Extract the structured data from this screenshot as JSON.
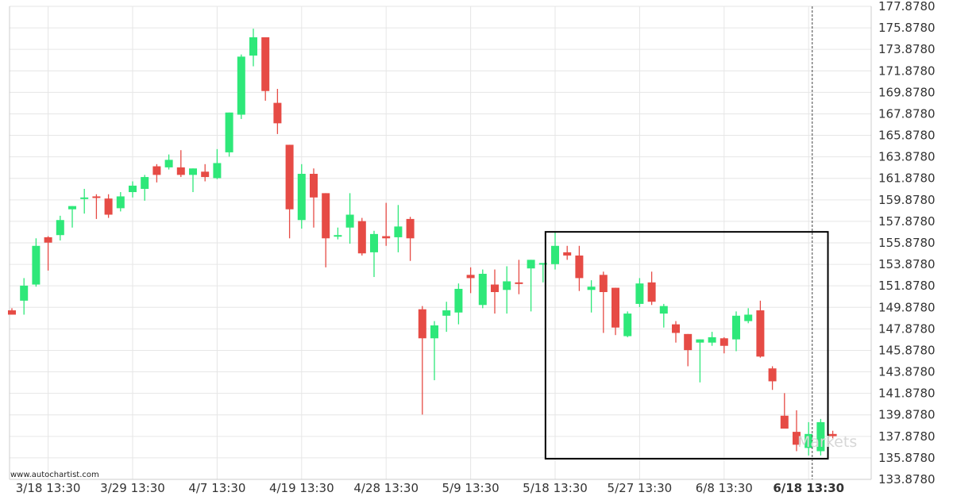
{
  "source_text": "www.autochartist.com",
  "watermark_text": "Markets",
  "chart_data": {
    "type": "candlestick",
    "ylim": [
      133.878,
      177.878
    ],
    "y_ticks": [
      "177.8780",
      "175.8780",
      "173.8780",
      "171.8780",
      "169.8780",
      "167.8780",
      "165.8780",
      "163.8780",
      "161.8780",
      "159.8780",
      "157.8780",
      "155.8780",
      "153.8780",
      "151.8780",
      "149.8780",
      "147.8780",
      "145.8780",
      "143.8780",
      "141.8780",
      "139.8780",
      "137.8780",
      "135.8780",
      "133.8780"
    ],
    "x_ticks": [
      {
        "label": "3/18 13:30",
        "index": 3,
        "highlight": false
      },
      {
        "label": "3/29 13:30",
        "index": 10,
        "highlight": false
      },
      {
        "label": "4/7 13:30",
        "index": 17,
        "highlight": false
      },
      {
        "label": "4/19 13:30",
        "index": 24,
        "highlight": false
      },
      {
        "label": "4/28 13:30",
        "index": 31,
        "highlight": false
      },
      {
        "label": "5/9 13:30",
        "index": 38,
        "highlight": false
      },
      {
        "label": "5/18 13:30",
        "index": 45,
        "highlight": false
      },
      {
        "label": "5/27 13:30",
        "index": 52,
        "highlight": false
      },
      {
        "label": "6/8 13:30",
        "index": 59,
        "highlight": false
      },
      {
        "label": "6/18 13:30",
        "index": 66,
        "highlight": true
      }
    ],
    "pattern_box": {
      "start_index": 44.2,
      "end_index": 67.6,
      "top": 156.9,
      "bottom": 135.8
    },
    "current_time_index": 66.3,
    "colors": {
      "up": "#2ee879",
      "down": "#e64b45"
    },
    "candles": [
      {
        "o": 149.6,
        "h": 149.8,
        "l": 149.2,
        "c": 149.2
      },
      {
        "o": 150.5,
        "h": 152.6,
        "l": 149.2,
        "c": 151.9
      },
      {
        "o": 152.0,
        "h": 156.3,
        "l": 151.8,
        "c": 155.6
      },
      {
        "o": 156.4,
        "h": 156.5,
        "l": 153.3,
        "c": 155.9
      },
      {
        "o": 156.6,
        "h": 158.4,
        "l": 156.1,
        "c": 158.0
      },
      {
        "o": 159.0,
        "h": 159.3,
        "l": 157.3,
        "c": 159.3
      },
      {
        "o": 160.1,
        "h": 160.9,
        "l": 158.6,
        "c": 160.1
      },
      {
        "o": 160.2,
        "h": 160.4,
        "l": 158.1,
        "c": 160.1
      },
      {
        "o": 160.0,
        "h": 160.4,
        "l": 158.2,
        "c": 158.5
      },
      {
        "o": 159.1,
        "h": 160.6,
        "l": 158.8,
        "c": 160.2
      },
      {
        "o": 160.6,
        "h": 161.6,
        "l": 160.1,
        "c": 161.2
      },
      {
        "o": 160.9,
        "h": 162.2,
        "l": 159.8,
        "c": 162.0
      },
      {
        "o": 163.0,
        "h": 163.2,
        "l": 161.5,
        "c": 162.2
      },
      {
        "o": 162.9,
        "h": 164.1,
        "l": 162.7,
        "c": 163.6
      },
      {
        "o": 162.9,
        "h": 164.5,
        "l": 162.0,
        "c": 162.2
      },
      {
        "o": 162.2,
        "h": 162.8,
        "l": 160.6,
        "c": 162.8
      },
      {
        "o": 162.5,
        "h": 163.2,
        "l": 161.6,
        "c": 162.0
      },
      {
        "o": 161.9,
        "h": 164.6,
        "l": 161.8,
        "c": 163.3
      },
      {
        "o": 164.3,
        "h": 168.0,
        "l": 163.9,
        "c": 168.0
      },
      {
        "o": 167.8,
        "h": 173.4,
        "l": 167.4,
        "c": 173.2
      },
      {
        "o": 173.3,
        "h": 175.8,
        "l": 172.3,
        "c": 175.0
      },
      {
        "o": 175.0,
        "h": 175.0,
        "l": 169.1,
        "c": 170.0
      },
      {
        "o": 168.9,
        "h": 170.2,
        "l": 166.0,
        "c": 167.0
      },
      {
        "o": 165.0,
        "h": 165.0,
        "l": 156.3,
        "c": 159.0
      },
      {
        "o": 158.0,
        "h": 163.2,
        "l": 157.2,
        "c": 162.3
      },
      {
        "o": 162.3,
        "h": 162.8,
        "l": 157.3,
        "c": 160.1
      },
      {
        "o": 160.5,
        "h": 160.5,
        "l": 153.6,
        "c": 156.3
      },
      {
        "o": 156.6,
        "h": 157.3,
        "l": 156.2,
        "c": 156.6
      },
      {
        "o": 157.3,
        "h": 160.5,
        "l": 155.8,
        "c": 158.5
      },
      {
        "o": 157.9,
        "h": 158.2,
        "l": 154.7,
        "c": 154.9
      },
      {
        "o": 155.0,
        "h": 157.0,
        "l": 152.7,
        "c": 156.7
      },
      {
        "o": 156.5,
        "h": 159.6,
        "l": 155.6,
        "c": 156.3
      },
      {
        "o": 156.4,
        "h": 159.4,
        "l": 155.0,
        "c": 157.4
      },
      {
        "o": 158.1,
        "h": 158.3,
        "l": 154.2,
        "c": 156.3
      },
      {
        "o": 149.7,
        "h": 150.0,
        "l": 139.9,
        "c": 147.0
      },
      {
        "o": 147.0,
        "h": 148.6,
        "l": 143.1,
        "c": 148.2
      },
      {
        "o": 149.1,
        "h": 150.4,
        "l": 147.6,
        "c": 149.6
      },
      {
        "o": 149.4,
        "h": 152.1,
        "l": 148.3,
        "c": 151.6
      },
      {
        "o": 152.9,
        "h": 153.6,
        "l": 151.2,
        "c": 152.6
      },
      {
        "o": 150.1,
        "h": 153.4,
        "l": 149.8,
        "c": 153.0
      },
      {
        "o": 152.0,
        "h": 153.4,
        "l": 149.3,
        "c": 151.3
      },
      {
        "o": 151.5,
        "h": 153.7,
        "l": 149.3,
        "c": 152.3
      },
      {
        "o": 152.2,
        "h": 154.3,
        "l": 151.1,
        "c": 152.1
      },
      {
        "o": 153.5,
        "h": 154.3,
        "l": 149.5,
        "c": 154.3
      },
      {
        "o": 154.0,
        "h": 154.0,
        "l": 152.2,
        "c": 154.0
      },
      {
        "o": 153.9,
        "h": 156.9,
        "l": 153.4,
        "c": 155.6
      },
      {
        "o": 155.0,
        "h": 155.6,
        "l": 154.3,
        "c": 154.7
      },
      {
        "o": 154.7,
        "h": 155.6,
        "l": 151.4,
        "c": 152.6
      },
      {
        "o": 151.5,
        "h": 152.4,
        "l": 149.4,
        "c": 151.8
      },
      {
        "o": 152.9,
        "h": 153.2,
        "l": 147.5,
        "c": 151.3
      },
      {
        "o": 151.7,
        "h": 151.7,
        "l": 147.3,
        "c": 148.0
      },
      {
        "o": 147.2,
        "h": 149.5,
        "l": 147.1,
        "c": 149.3
      },
      {
        "o": 150.2,
        "h": 152.6,
        "l": 149.9,
        "c": 152.1
      },
      {
        "o": 152.2,
        "h": 153.2,
        "l": 150.1,
        "c": 150.4
      },
      {
        "o": 149.3,
        "h": 150.2,
        "l": 148.0,
        "c": 150.0
      },
      {
        "o": 148.3,
        "h": 148.6,
        "l": 146.6,
        "c": 147.5
      },
      {
        "o": 147.4,
        "h": 147.4,
        "l": 144.4,
        "c": 145.9
      },
      {
        "o": 146.6,
        "h": 146.9,
        "l": 142.9,
        "c": 146.9
      },
      {
        "o": 146.6,
        "h": 147.6,
        "l": 146.3,
        "c": 147.1
      },
      {
        "o": 147.0,
        "h": 147.1,
        "l": 145.6,
        "c": 146.3
      },
      {
        "o": 146.9,
        "h": 149.5,
        "l": 145.8,
        "c": 149.1
      },
      {
        "o": 148.6,
        "h": 149.8,
        "l": 148.4,
        "c": 149.2
      },
      {
        "o": 149.6,
        "h": 150.5,
        "l": 145.2,
        "c": 145.3
      },
      {
        "o": 144.2,
        "h": 144.4,
        "l": 142.2,
        "c": 143.0
      },
      {
        "o": 139.8,
        "h": 141.9,
        "l": 138.7,
        "c": 138.6
      },
      {
        "o": 138.3,
        "h": 140.3,
        "l": 136.5,
        "c": 137.1
      },
      {
        "o": 136.8,
        "h": 139.2,
        "l": 136.1,
        "c": 138.1
      },
      {
        "o": 136.5,
        "h": 139.5,
        "l": 136.1,
        "c": 139.2
      },
      {
        "o": 138.1,
        "h": 138.4,
        "l": 137.7,
        "c": 137.9
      }
    ]
  }
}
